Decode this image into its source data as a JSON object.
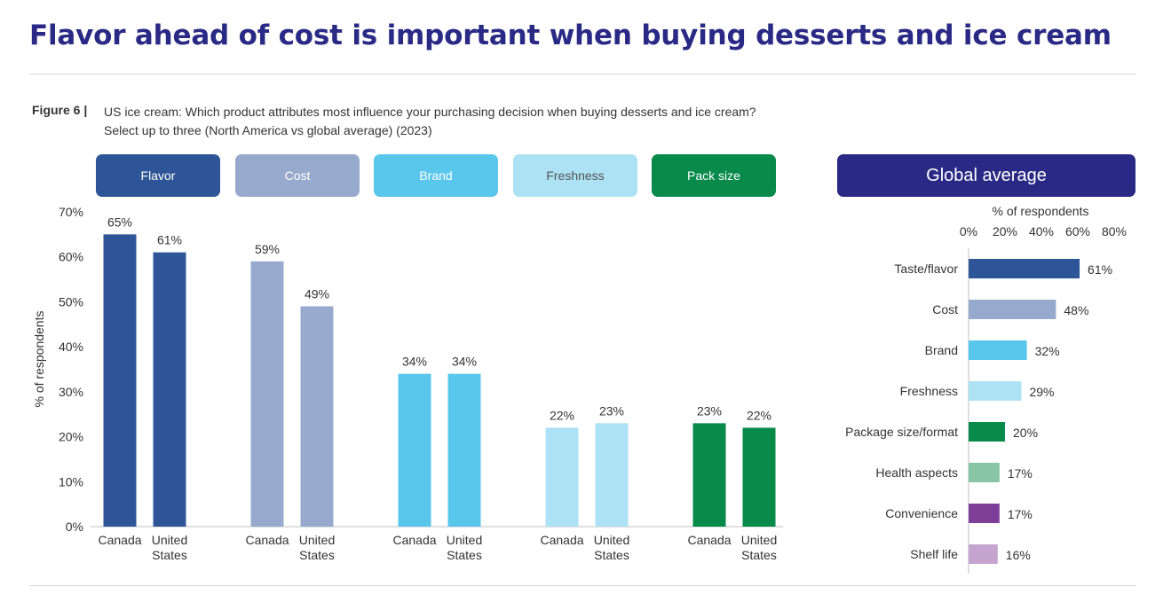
{
  "title": "Flavor ahead of cost is important when buying desserts and ice cream",
  "figure": {
    "label": "Figure 6 |",
    "line1": "US ice cream: Which product attributes most influence your purchasing decision when buying desserts and ice cream?",
    "line2": "Select up to three (North America vs global average) (2023)"
  },
  "legend_pills": [
    {
      "label": "Flavor",
      "color": "#2e5597",
      "text_color": "#ffffff"
    },
    {
      "label": "Cost",
      "color": "#97a9cc",
      "text_color": "#ffffff"
    },
    {
      "label": "Brand",
      "color": "#59c7ec",
      "text_color": "#ffffff"
    },
    {
      "label": "Freshness",
      "color": "#ace2f4",
      "text_color": "#555555"
    },
    {
      "label": "Pack size",
      "color": "#078a4a",
      "text_color": "#ffffff"
    }
  ],
  "global_label": "Global average",
  "chart_data": [
    {
      "type": "bar",
      "ylabel": "% of respondents",
      "ylim": [
        0,
        70
      ],
      "yticks": [
        "0%",
        "10%",
        "20%",
        "30%",
        "40%",
        "50%",
        "60%",
        "70%"
      ],
      "groups": [
        {
          "name": "Flavor",
          "color": "#2e5597",
          "bars": [
            {
              "label": [
                "Canada"
              ],
              "value": 65
            },
            {
              "label": [
                "United",
                "States"
              ],
              "value": 61
            }
          ]
        },
        {
          "name": "Cost",
          "color": "#97a9cc",
          "bars": [
            {
              "label": [
                "Canada"
              ],
              "value": 59
            },
            {
              "label": [
                "United",
                "States"
              ],
              "value": 49
            }
          ]
        },
        {
          "name": "Brand",
          "color": "#59c7ec",
          "bars": [
            {
              "label": [
                "Canada"
              ],
              "value": 34
            },
            {
              "label": [
                "United",
                "States"
              ],
              "value": 34
            }
          ]
        },
        {
          "name": "Freshness",
          "color": "#ace2f4",
          "bars": [
            {
              "label": [
                "Canada"
              ],
              "value": 22
            },
            {
              "label": [
                "United",
                "States"
              ],
              "value": 23
            }
          ]
        },
        {
          "name": "Pack size",
          "color": "#078a4a",
          "bars": [
            {
              "label": [
                "Canada"
              ],
              "value": 23
            },
            {
              "label": [
                "United",
                "States"
              ],
              "value": 22
            }
          ]
        }
      ]
    },
    {
      "type": "bar",
      "orientation": "horizontal",
      "xlabel": "% of respondents",
      "xlim": [
        0,
        80
      ],
      "xticks": [
        "0%",
        "20%",
        "40%",
        "60%",
        "80%"
      ],
      "categories": [
        "Taste/flavor",
        "Cost",
        "Brand",
        "Freshness",
        "Package size/format",
        "Health aspects",
        "Convenience",
        "Shelf life"
      ],
      "values": [
        61,
        48,
        32,
        29,
        20,
        17,
        17,
        16
      ],
      "colors": [
        "#2e5597",
        "#97a9cc",
        "#59c7ec",
        "#ace2f4",
        "#078a4a",
        "#87c5a4",
        "#7e3f98",
        "#c5a4cf"
      ]
    }
  ]
}
